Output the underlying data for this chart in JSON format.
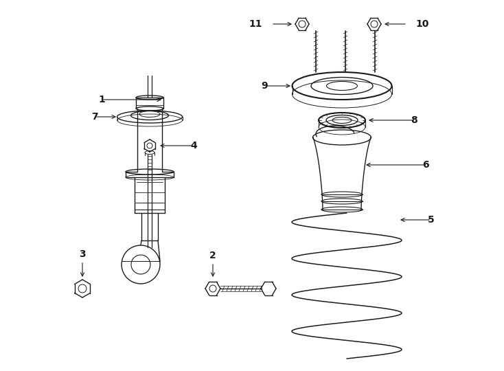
{
  "bg_color": "#ffffff",
  "line_color": "#1a1a1a",
  "fig_width": 7.34,
  "fig_height": 5.4,
  "dpi": 100,
  "lw": 1.0,
  "lw_thick": 1.5,
  "fs": 10
}
